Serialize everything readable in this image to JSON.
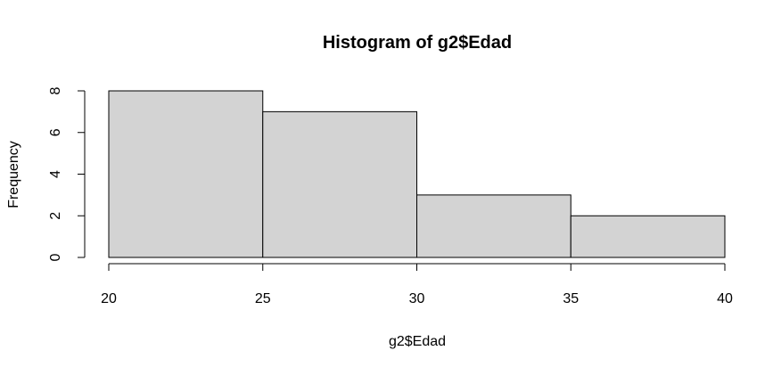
{
  "chart_data": {
    "type": "bar",
    "title": "Histogram of g2$Edad",
    "xlabel": "g2$Edad",
    "ylabel": "Frequency",
    "bins": [
      {
        "from": 20,
        "to": 25,
        "count": 8
      },
      {
        "from": 25,
        "to": 30,
        "count": 7
      },
      {
        "from": 30,
        "to": 35,
        "count": 3
      },
      {
        "from": 35,
        "to": 40,
        "count": 2
      }
    ],
    "xlim": [
      20,
      40
    ],
    "ylim": [
      0,
      8
    ],
    "x_ticks": [
      20,
      25,
      30,
      35,
      40
    ],
    "y_ticks": [
      0,
      2,
      4,
      6,
      8
    ],
    "grid": false,
    "colors": {
      "bar_fill": "#d3d3d3",
      "bar_stroke": "#000000",
      "axis": "#000000"
    }
  }
}
